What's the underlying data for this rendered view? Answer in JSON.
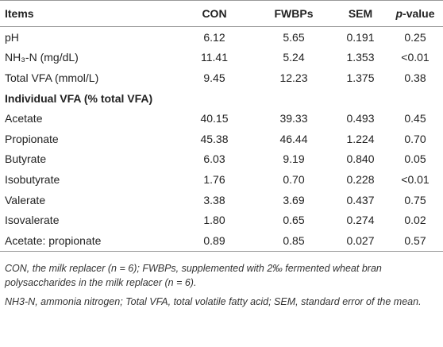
{
  "header": {
    "items": "Items",
    "con": "CON",
    "fwbps": "FWBPs",
    "sem": "SEM",
    "p_value_p": "p",
    "p_value_rest": "-value"
  },
  "table": {
    "rows": [
      [
        "pH",
        "6.12",
        "5.65",
        "0.191",
        "0.25"
      ],
      [
        "NH₃-N (mg/dL)",
        "11.41",
        "5.24",
        "1.353",
        "<0.01"
      ],
      [
        "Total VFA (mmol/L)",
        "9.45",
        "12.23",
        "1.375",
        "0.38"
      ],
      [
        "Individual VFA (% total VFA)"
      ],
      [
        "Acetate",
        "40.15",
        "39.33",
        "0.493",
        "0.45"
      ],
      [
        "Propionate",
        "45.38",
        "46.44",
        "1.224",
        "0.70"
      ],
      [
        "Butyrate",
        "6.03",
        "9.19",
        "0.840",
        "0.05"
      ],
      [
        "Isobutyrate",
        "1.76",
        "0.70",
        "0.228",
        "<0.01"
      ],
      [
        "Valerate",
        "3.38",
        "3.69",
        "0.437",
        "0.75"
      ],
      [
        "Isovalerate",
        "1.80",
        "0.65",
        "0.274",
        "0.02"
      ],
      [
        "Acetate: propionate",
        "0.89",
        "0.85",
        "0.027",
        "0.57"
      ]
    ]
  },
  "footnotes": [
    "CON, the milk replacer (n = 6); FWBPs, supplemented with 2‰ fermented wheat bran polysaccharides in the milk replacer (n = 6).",
    "NH3-N, ammonia nitrogen; Total VFA, total volatile fatty acid; SEM, standard error of the mean."
  ]
}
